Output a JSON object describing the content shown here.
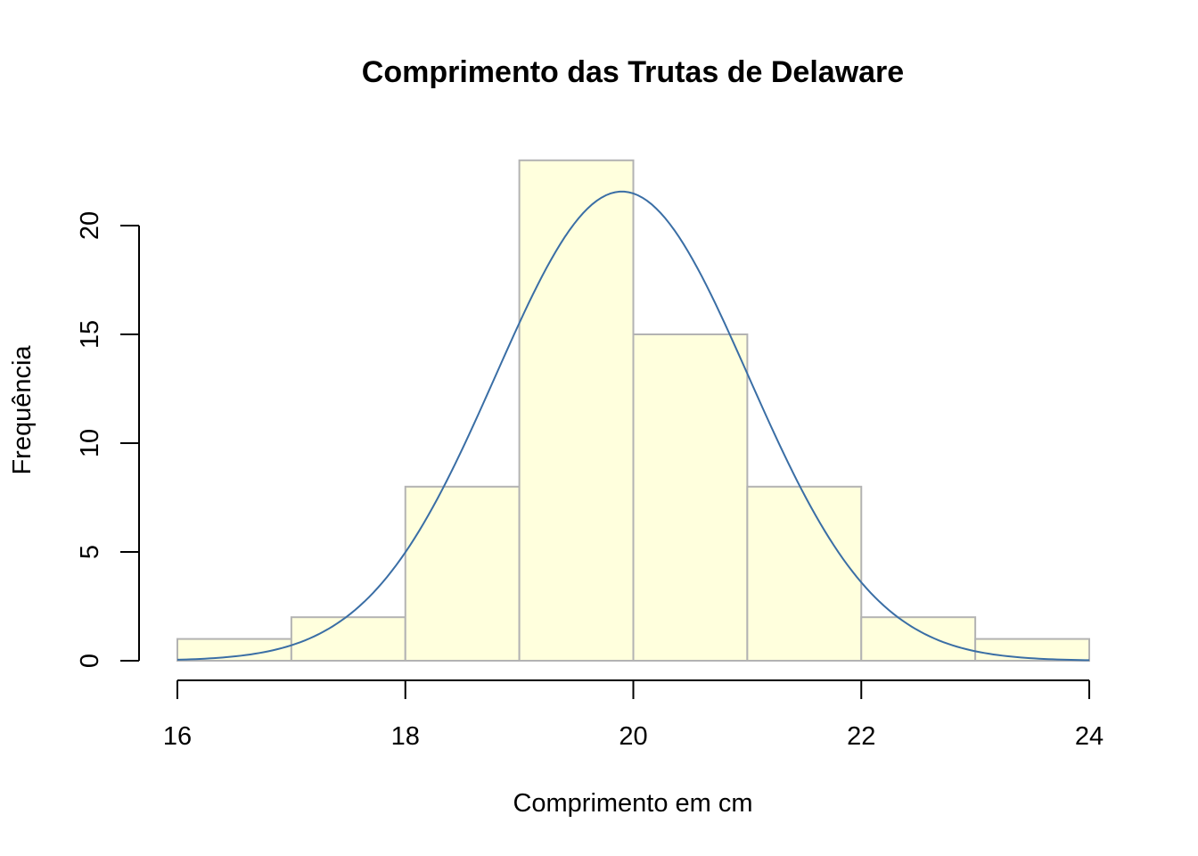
{
  "chart_data": {
    "type": "bar",
    "title": "Comprimento das Trutas de Delaware",
    "xlabel": "Comprimento em cm",
    "ylabel": "Frequência",
    "bins": [
      {
        "from": 16,
        "to": 17,
        "count": 1
      },
      {
        "from": 17,
        "to": 18,
        "count": 2
      },
      {
        "from": 18,
        "to": 19,
        "count": 8
      },
      {
        "from": 19,
        "to": 20,
        "count": 23
      },
      {
        "from": 20,
        "to": 21,
        "count": 15
      },
      {
        "from": 21,
        "to": 22,
        "count": 8
      },
      {
        "from": 22,
        "to": 23,
        "count": 2
      },
      {
        "from": 23,
        "to": 24,
        "count": 1
      }
    ],
    "density_curve": {
      "type": "normal",
      "mean": 19.9,
      "sd": 1.11,
      "n": 60,
      "binwidth": 1
    },
    "xlim": [
      16,
      24
    ],
    "ylim": [
      0,
      23
    ],
    "x_ticks": [
      16,
      18,
      20,
      22,
      24
    ],
    "y_ticks": [
      0,
      5,
      10,
      15,
      20
    ],
    "grid": false,
    "legend": "none",
    "colors": {
      "bar_fill": "#ffffdd",
      "bar_border": "#b3b3b3",
      "curve": "#3a6ea5",
      "axis": "#000000"
    }
  }
}
